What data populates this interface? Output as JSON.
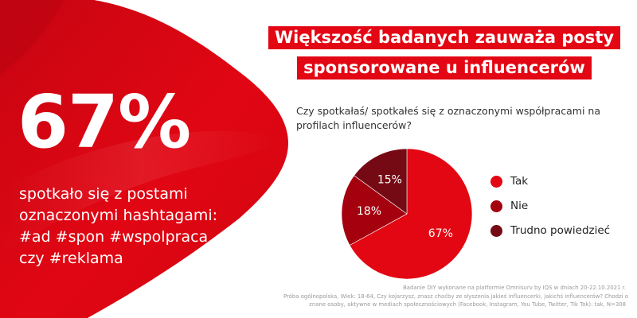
{
  "colors": {
    "brand_red": "#e30613",
    "dark_red": "#a4000e",
    "darkest_red": "#760a14"
  },
  "left": {
    "big_stat": "67%",
    "desc_lines": [
      "spotkało się z postami",
      "oznaczonymi hashtagami:",
      "#ad #spon #wspolpraca",
      "czy #reklama"
    ]
  },
  "headline": {
    "lines": [
      "Większość badanych zauważa posty",
      "sponsorowane u influencerów"
    ]
  },
  "question": "Czy spotkałaś/ spotkałeś się z oznaczonymi współpracami na profilach influencerów?",
  "chart_data": {
    "type": "pie",
    "slices": [
      {
        "label": "Tak",
        "value": 67,
        "value_label": "67%",
        "color": "#e30613"
      },
      {
        "label": "Nie",
        "value": 18,
        "value_label": "18%",
        "color": "#a4000e"
      },
      {
        "label": "Trudno powiedzieć",
        "value": 15,
        "value_label": "15%",
        "color": "#760a14"
      }
    ],
    "legend_position": "right"
  },
  "footnote": {
    "lines": [
      "Badanie DIY wykonane na platformie Omnisurv by IQS w dniach 20-22.10.2021 r.",
      "Próba ogólnopolska, Wiek: 18-64, Czy kojarzysz, znasz choćby ze słyszenia jakieś influencerki, jakichś influencerów? Chodzi o",
      "znane osoby, aktywne w mediach społecznościowych (Facebook, Instagram, You Tube, Twitter, Tik Tok): tak, N=308"
    ]
  }
}
